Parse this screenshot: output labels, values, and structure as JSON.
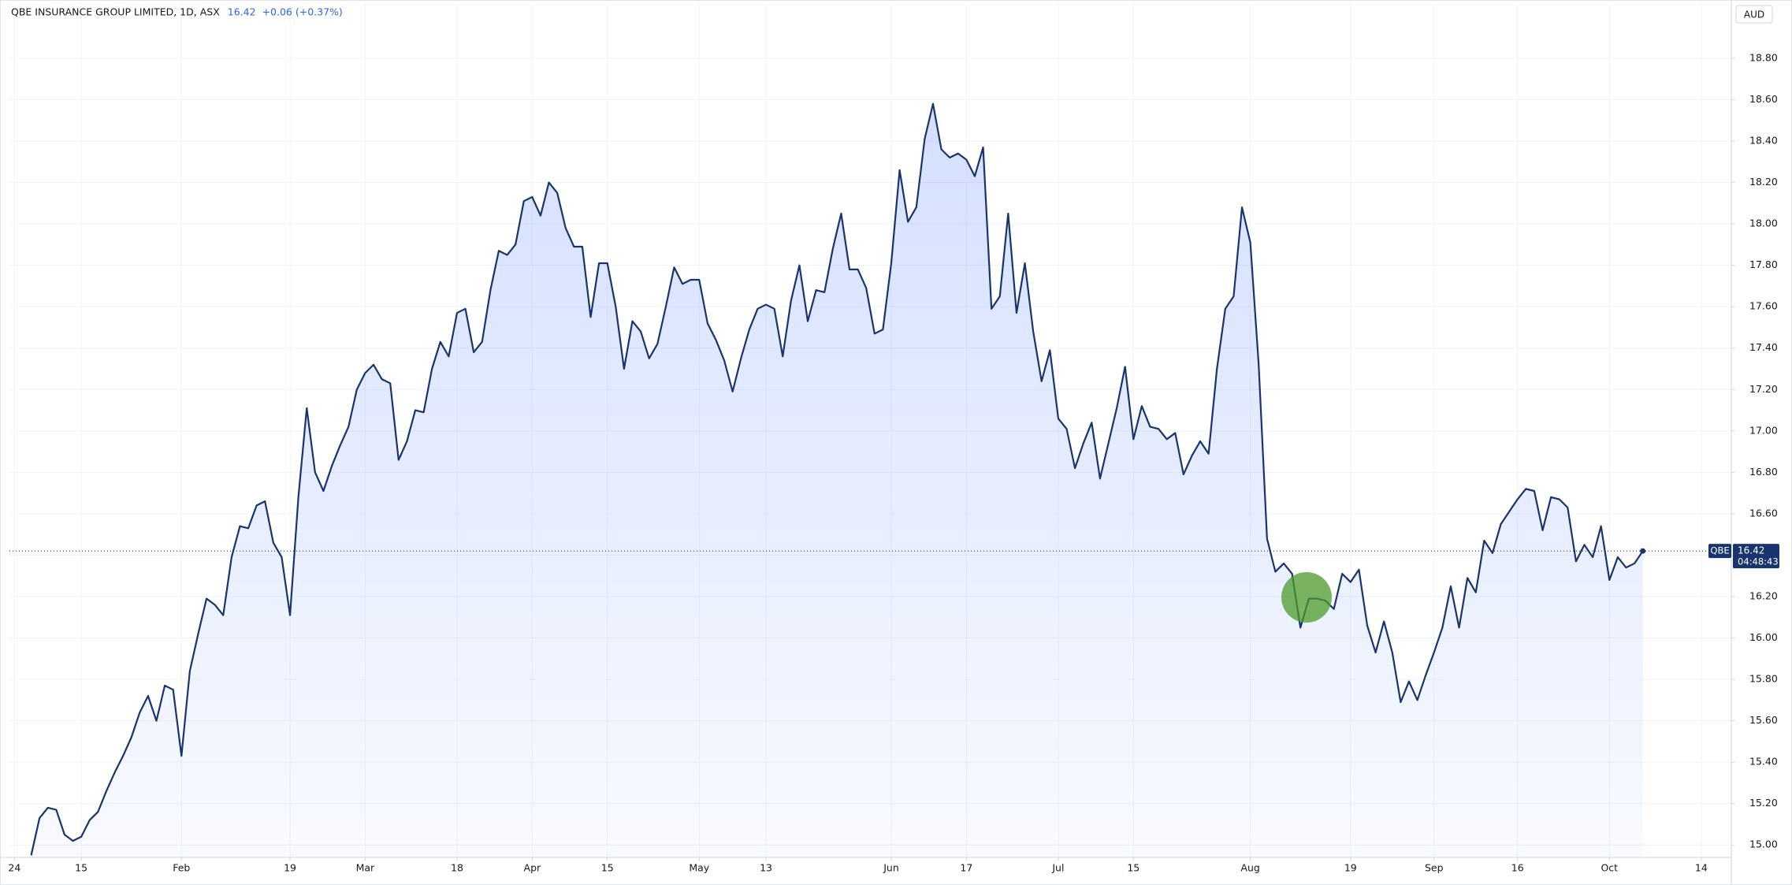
{
  "chart_data": {
    "type": "area",
    "title": "QBE INSURANCE GROUP LIMITED, 1D, ASX",
    "last": 16.42,
    "change": "+0.06 (+0.37%)",
    "currency": "AUD",
    "symbol": "QBE",
    "countdown": "04:48:43",
    "color": "#17346e",
    "grid": true,
    "values": [
      14.95,
      15.13,
      15.18,
      15.17,
      15.05,
      15.02,
      15.04,
      15.12,
      15.16,
      15.26,
      15.35,
      15.43,
      15.52,
      15.64,
      15.72,
      15.6,
      15.77,
      15.75,
      15.43,
      15.84,
      16.02,
      16.19,
      16.16,
      16.11,
      16.39,
      16.54,
      16.53,
      16.64,
      16.66,
      16.46,
      16.39,
      16.11,
      16.68,
      17.11,
      16.8,
      16.71,
      16.83,
      16.93,
      17.02,
      17.2,
      17.28,
      17.32,
      17.25,
      17.23,
      16.86,
      16.95,
      17.1,
      17.09,
      17.3,
      17.43,
      17.36,
      17.57,
      17.59,
      17.38,
      17.43,
      17.68,
      17.87,
      17.85,
      17.9,
      18.11,
      18.13,
      18.04,
      18.2,
      18.15,
      17.98,
      17.89,
      17.89,
      17.55,
      17.81,
      17.81,
      17.6,
      17.3,
      17.53,
      17.48,
      17.35,
      17.42,
      17.6,
      17.79,
      17.71,
      17.73,
      17.73,
      17.52,
      17.44,
      17.34,
      17.19,
      17.35,
      17.49,
      17.59,
      17.61,
      17.59,
      17.36,
      17.63,
      17.8,
      17.53,
      17.68,
      17.67,
      17.88,
      18.05,
      17.78,
      17.78,
      17.69,
      17.47,
      17.49,
      17.81,
      18.26,
      18.01,
      18.08,
      18.41,
      18.58,
      18.36,
      18.32,
      18.34,
      18.31,
      18.23,
      18.37,
      17.59,
      17.65,
      18.05,
      17.57,
      17.81,
      17.48,
      17.24,
      17.39,
      17.06,
      17.01,
      16.82,
      16.94,
      17.04,
      16.77,
      16.94,
      17.11,
      17.31,
      16.96,
      17.12,
      17.02,
      17.01,
      16.96,
      16.99,
      16.79,
      16.88,
      16.95,
      16.89,
      17.3,
      17.59,
      17.65,
      18.08,
      17.91,
      17.32,
      16.48,
      16.32,
      16.36,
      16.31,
      16.05,
      16.19,
      16.19,
      16.18,
      16.14,
      16.31,
      16.27,
      16.33,
      16.06,
      15.93,
      16.08,
      15.93,
      15.69,
      15.79,
      15.7,
      15.82,
      15.93,
      16.05,
      16.25,
      16.05,
      16.29,
      16.22,
      16.47,
      16.41,
      16.55,
      16.61,
      16.67,
      16.72,
      16.71,
      16.52,
      16.68,
      16.67,
      16.63,
      16.37,
      16.45,
      16.39,
      16.54,
      16.28,
      16.39,
      16.34,
      16.36,
      16.42
    ],
    "xlim": [
      -2.6,
      203.6
    ],
    "xticks": [
      {
        "value": -2,
        "label": "24"
      },
      {
        "value": 6,
        "label": "15"
      },
      {
        "value": 18,
        "label": "Feb"
      },
      {
        "value": 31,
        "label": "19"
      },
      {
        "value": 40,
        "label": "Mar"
      },
      {
        "value": 51,
        "label": "18"
      },
      {
        "value": 60,
        "label": "Apr"
      },
      {
        "value": 69,
        "label": "15"
      },
      {
        "value": 80,
        "label": "May"
      },
      {
        "value": 88,
        "label": "13"
      },
      {
        "value": 103,
        "label": "Jun"
      },
      {
        "value": 112,
        "label": "17"
      },
      {
        "value": 123,
        "label": "Jul"
      },
      {
        "value": 132,
        "label": "15"
      },
      {
        "value": 146,
        "label": "Aug"
      },
      {
        "value": 158,
        "label": "19"
      },
      {
        "value": 168,
        "label": "Sep"
      },
      {
        "value": 178,
        "label": "16"
      },
      {
        "value": 189,
        "label": "Oct"
      },
      {
        "value": 200,
        "label": "14"
      }
    ],
    "ylim": [
      14.94,
      19.07
    ],
    "yticks": [
      {
        "value": 15,
        "label": "15.00"
      },
      {
        "value": 15.2,
        "label": "15.20"
      },
      {
        "value": 15.4,
        "label": "15.40"
      },
      {
        "value": 15.6,
        "label": "15.60"
      },
      {
        "value": 15.8,
        "label": "15.80"
      },
      {
        "value": 16,
        "label": "16.00"
      },
      {
        "value": 16.2,
        "label": "16.20"
      },
      {
        "value": 16.4,
        "label": "16.40"
      },
      {
        "value": 16.6,
        "label": "16.60"
      },
      {
        "value": 16.8,
        "label": "16.80"
      },
      {
        "value": 17,
        "label": "17.00"
      },
      {
        "value": 17.2,
        "label": "17.20"
      },
      {
        "value": 17.4,
        "label": "17.40"
      },
      {
        "value": 17.6,
        "label": "17.60"
      },
      {
        "value": 17.8,
        "label": "17.80"
      },
      {
        "value": 18,
        "label": "18.00"
      },
      {
        "value": 18.2,
        "label": "18.20"
      },
      {
        "value": 18.4,
        "label": "18.40"
      },
      {
        "value": 18.6,
        "label": "18.60"
      },
      {
        "value": 18.8,
        "label": "18.80"
      }
    ]
  }
}
